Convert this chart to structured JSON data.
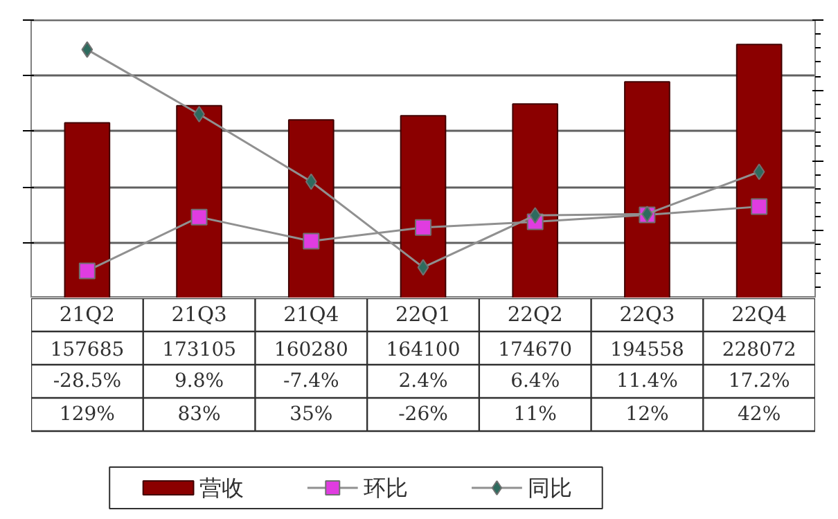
{
  "chart_data": {
    "type": "bar",
    "categories": [
      "21Q2",
      "21Q3",
      "21Q4",
      "22Q1",
      "22Q2",
      "22Q3",
      "22Q4"
    ],
    "series": [
      {
        "name": "营收",
        "color": "#8b0000",
        "values": [
          157685,
          173105,
          160280,
          164100,
          174670,
          194558,
          228072
        ],
        "value_labels": [
          "157685",
          "173105",
          "160280",
          "164100",
          "174670",
          "194558",
          "228072"
        ]
      },
      {
        "name": "环比",
        "type": "line",
        "axis": "y2",
        "marker": "square",
        "color": "#e03ce0",
        "values": [
          -28.5,
          9.8,
          -7.4,
          2.4,
          6.4,
          11.4,
          17.2
        ],
        "value_labels": [
          "-28.5%",
          "9.8%",
          "-7.4%",
          "2.4%",
          "6.4%",
          "11.4%",
          "17.2%"
        ]
      },
      {
        "name": "同比",
        "type": "line",
        "axis": "y2",
        "marker": "diamond",
        "color": "#2e6b5e",
        "values": [
          129,
          83,
          35,
          -26,
          11,
          12,
          42
        ],
        "value_labels": [
          "129%",
          "83%",
          "35%",
          "-26%",
          "11%",
          "12%",
          "42%"
        ]
      }
    ],
    "ylim": [
      0,
      250000
    ],
    "yticks": [
      {
        "value": 0,
        "label": null
      },
      {
        "value": 50000,
        "label": null
      },
      {
        "value": 100000,
        "label": null
      },
      {
        "value": 150000,
        "label": null
      },
      {
        "value": 200000,
        "label": null
      },
      {
        "value": 250000,
        "label": null
      }
    ],
    "y2lim": [
      -48,
      150
    ],
    "grid": "y",
    "legend": "bottom"
  }
}
